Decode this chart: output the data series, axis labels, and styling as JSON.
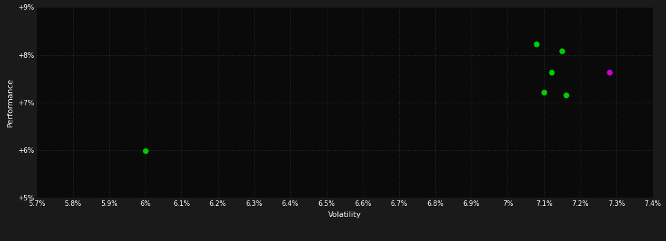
{
  "background_color": "#1a1a1a",
  "plot_bg_color": "#0a0a0a",
  "text_color": "#ffffff",
  "xlabel": "Volatility",
  "ylabel": "Performance",
  "xlim": [
    0.057,
    0.074
  ],
  "ylim": [
    0.05,
    0.09
  ],
  "xticks": [
    0.057,
    0.058,
    0.059,
    0.06,
    0.061,
    0.062,
    0.063,
    0.064,
    0.065,
    0.066,
    0.067,
    0.068,
    0.069,
    0.07,
    0.071,
    0.072,
    0.073,
    0.074
  ],
  "xtick_labels": [
    "5.7%",
    "5.8%",
    "5.9%",
    "6%",
    "6.1%",
    "6.2%",
    "6.3%",
    "6.4%",
    "6.5%",
    "6.6%",
    "6.7%",
    "6.8%",
    "6.9%",
    "7%",
    "7.1%",
    "7.2%",
    "7.3%",
    "7.4%"
  ],
  "yticks": [
    0.05,
    0.06,
    0.07,
    0.08,
    0.09
  ],
  "ytick_labels": [
    "+5%",
    "+6%",
    "+7%",
    "+8%",
    "+9%"
  ],
  "green_points": [
    [
      0.06,
      0.0598
    ],
    [
      0.0708,
      0.0823
    ],
    [
      0.0715,
      0.0808
    ],
    [
      0.0712,
      0.0763
    ],
    [
      0.071,
      0.0722
    ],
    [
      0.0716,
      0.0715
    ]
  ],
  "magenta_points": [
    [
      0.0728,
      0.0763
    ]
  ],
  "green_color": "#00cc00",
  "magenta_color": "#cc00cc",
  "marker_size": 5,
  "grid_color": "#2d2d2d",
  "grid_linestyle": ":",
  "grid_linewidth": 0.7
}
